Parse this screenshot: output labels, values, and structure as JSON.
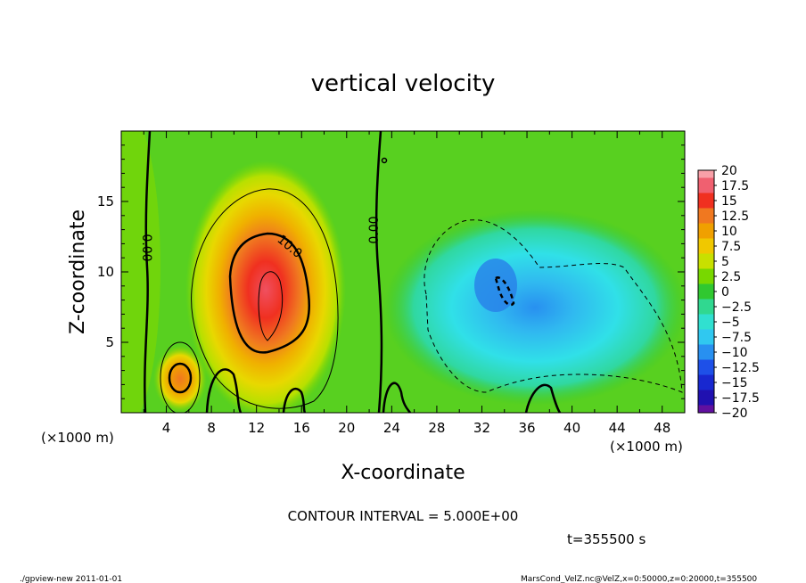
{
  "chart_data": {
    "type": "heatmap",
    "title": "vertical velocity",
    "xlabel": "X-coordinate",
    "ylabel": "Z-coordinate",
    "x_unit": "(×1000 m)",
    "z_unit": "(×1000 m)",
    "xlim": [
      0,
      50
    ],
    "ylim": [
      0,
      20
    ],
    "x_ticks": [
      4,
      8,
      12,
      16,
      20,
      24,
      28,
      32,
      36,
      40,
      44,
      48
    ],
    "y_ticks": [
      5,
      10,
      15
    ],
    "colorbar": {
      "labels": [
        "20",
        "17.5",
        "15",
        "12.5",
        "10",
        "7.5",
        "5",
        "2.5",
        "0",
        "−2.5",
        "−5",
        "−7.5",
        "−10",
        "−12.5",
        "−15",
        "−17.5",
        "−20"
      ],
      "colors": [
        "#f8a0a8",
        "#f06070",
        "#f03020",
        "#f07820",
        "#f0a000",
        "#f0c800",
        "#c8e000",
        "#78d800",
        "#30c830",
        "#30d890",
        "#30e0d0",
        "#30c8f0",
        "#2890f0",
        "#1e50e8",
        "#1828d0",
        "#2010b0",
        "#6010a0"
      ]
    },
    "contour_interval_label": "CONTOUR INTERVAL = 5.000E+00",
    "contour_labels": [
      "0.00",
      "10.0",
      "0.00"
    ],
    "time_label": "t=355500 s",
    "footer_left": "./gpview-new  2011-01-01",
    "footer_right": "MarsCond_VelZ.nc@VelZ,x=0:50000,z=0:20000,t=355500",
    "features": [
      {
        "name": "updraft",
        "x": 13,
        "z": 8,
        "peak": 17.5
      },
      {
        "name": "small-updraft",
        "x": 5.2,
        "z": 2.6,
        "peak": 12.5
      },
      {
        "name": "downdraft",
        "x": 33,
        "z": 9,
        "peak": -10
      }
    ]
  }
}
